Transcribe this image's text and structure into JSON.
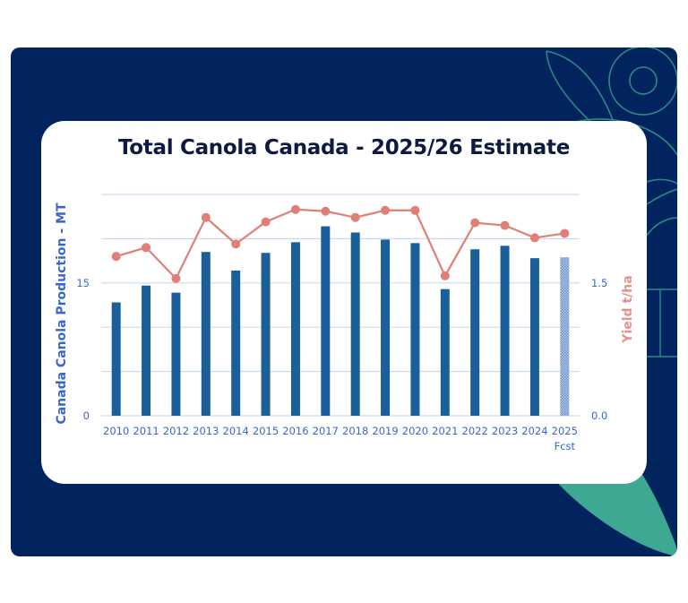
{
  "chart_data": {
    "type": "bar",
    "title": "Total Canola Canada - 2025/26 Estimate",
    "categories": [
      "2010",
      "2011",
      "2012",
      "2013",
      "2014",
      "2015",
      "2016",
      "2017",
      "2018",
      "2019",
      "2020",
      "2021",
      "2022",
      "2023",
      "2024",
      "2025"
    ],
    "category_sublabels": {
      "2025": "Fcst"
    },
    "ylabel": "Canada Canola Production - MT",
    "y2label": "Yield t/ha",
    "ylim": [
      0,
      25
    ],
    "y2lim": [
      0,
      2.5
    ],
    "yticks_labeled": [
      {
        "value": 0,
        "label": "0"
      },
      {
        "value": 15,
        "label": "15"
      }
    ],
    "y2ticks_labeled": [
      {
        "value": 0,
        "label": "0.0"
      },
      {
        "value": 1.5,
        "label": "1.5"
      }
    ],
    "grid": true,
    "grid_step": 5,
    "series": [
      {
        "name": "Production",
        "type": "bar",
        "axis": "left",
        "values": [
          12.8,
          14.7,
          13.9,
          18.5,
          16.4,
          18.4,
          19.6,
          21.4,
          20.7,
          19.9,
          19.5,
          14.3,
          18.8,
          19.2,
          17.8,
          17.9
        ],
        "forecast_index": 15,
        "color": "#1a5e9a",
        "forecast_color": "#8aa9d6"
      },
      {
        "name": "Yield",
        "type": "line",
        "axis": "right",
        "values": [
          1.8,
          1.9,
          1.55,
          2.24,
          1.94,
          2.19,
          2.33,
          2.31,
          2.24,
          2.32,
          2.32,
          1.58,
          2.18,
          2.15,
          2.01,
          2.06
        ],
        "color": "#e07f78"
      }
    ]
  },
  "colors": {
    "panel": "#01235e",
    "accent_teal": "#3ea892",
    "axis_text": "#3a66cc",
    "grid": "#c9dbf0"
  }
}
